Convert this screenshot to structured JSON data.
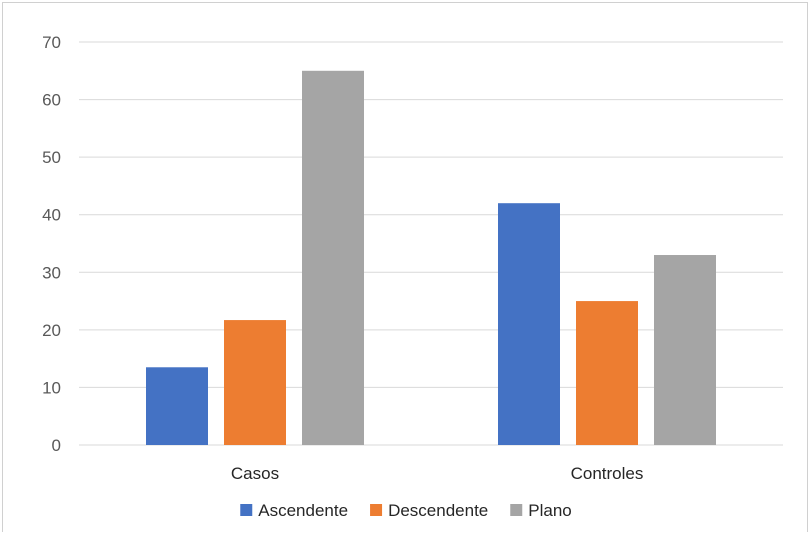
{
  "chart_data": {
    "type": "bar",
    "categories": [
      "Casos",
      "Controles"
    ],
    "series": [
      {
        "name": "Ascendente",
        "values": [
          13.5,
          42
        ],
        "color": "#4472c4"
      },
      {
        "name": "Descendente",
        "values": [
          21.7,
          25
        ],
        "color": "#ed7d31"
      },
      {
        "name": "Plano",
        "values": [
          65,
          33
        ],
        "color": "#a5a5a5"
      }
    ],
    "yticks": [
      "0",
      "10",
      "20",
      "30",
      "40",
      "50",
      "60",
      "70"
    ],
    "ylim": [
      0,
      70
    ],
    "grid": true,
    "legend_position": "bottom",
    "title": "",
    "xlabel": "",
    "ylabel": ""
  }
}
